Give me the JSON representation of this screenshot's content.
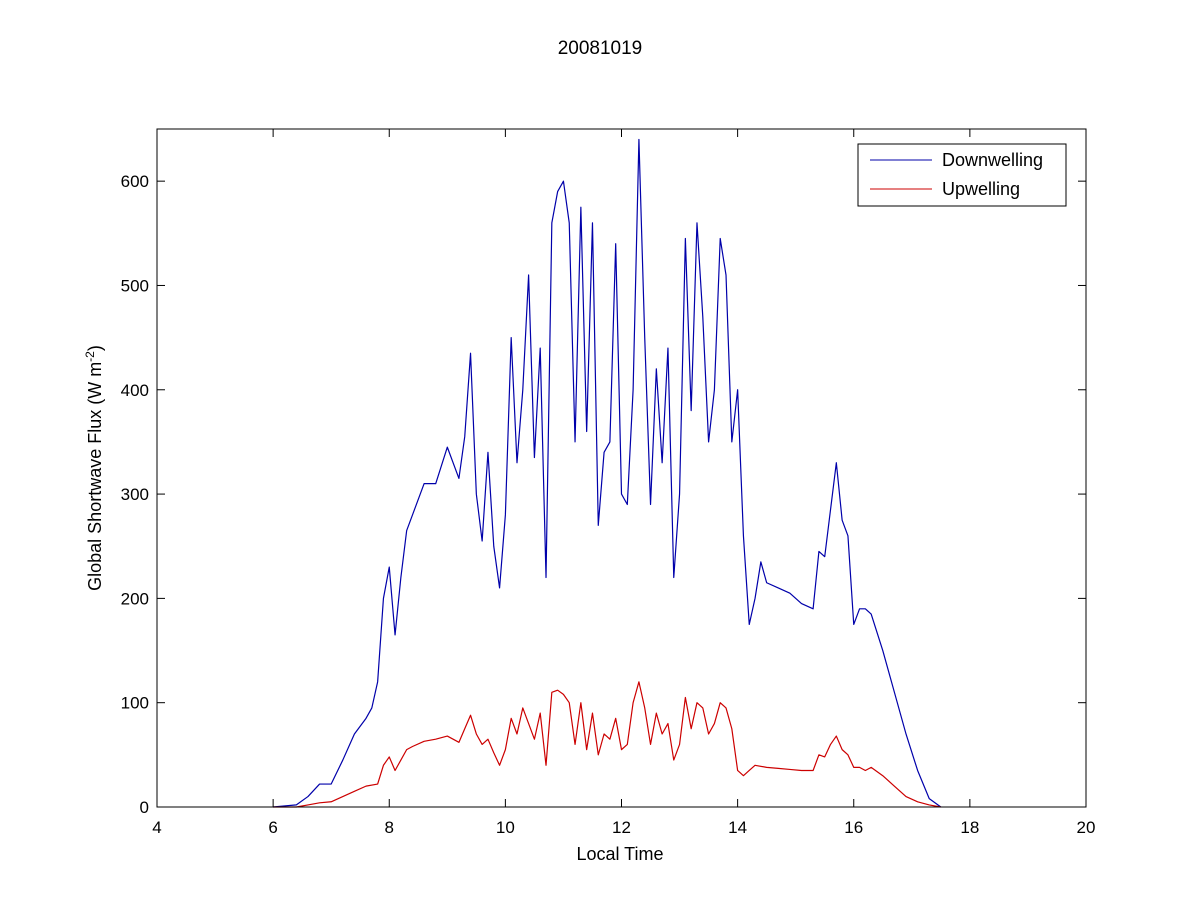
{
  "chart_data": {
    "type": "line",
    "title": "20081019",
    "xlabel": "Local Time",
    "ylabel": "Global Shortwave Flux (W m",
    "ylabel_superscript": "-2",
    "ylabel_suffix": ")",
    "xlim": [
      4,
      20
    ],
    "ylim": [
      0,
      650
    ],
    "xticks": [
      4,
      6,
      8,
      10,
      12,
      14,
      16,
      18,
      20
    ],
    "yticks": [
      0,
      100,
      200,
      300,
      400,
      500,
      600
    ],
    "grid": false,
    "legend_position": "top-right",
    "series": [
      {
        "name": "Downwelling",
        "color": "#0000aa",
        "x": [
          6.0,
          6.4,
          6.6,
          6.8,
          7.0,
          7.2,
          7.4,
          7.6,
          7.7,
          7.8,
          7.9,
          8.0,
          8.1,
          8.2,
          8.3,
          8.4,
          8.6,
          8.8,
          9.0,
          9.2,
          9.3,
          9.4,
          9.5,
          9.6,
          9.7,
          9.8,
          9.9,
          10.0,
          10.1,
          10.2,
          10.3,
          10.4,
          10.5,
          10.6,
          10.7,
          10.8,
          10.9,
          11.0,
          11.1,
          11.2,
          11.3,
          11.4,
          11.5,
          11.6,
          11.7,
          11.8,
          11.9,
          12.0,
          12.1,
          12.2,
          12.3,
          12.4,
          12.5,
          12.6,
          12.7,
          12.8,
          12.9,
          13.0,
          13.1,
          13.2,
          13.3,
          13.4,
          13.5,
          13.6,
          13.7,
          13.8,
          13.9,
          14.0,
          14.1,
          14.2,
          14.3,
          14.4,
          14.5,
          14.7,
          14.9,
          15.1,
          15.3,
          15.4,
          15.5,
          15.6,
          15.7,
          15.8,
          15.9,
          16.0,
          16.1,
          16.2,
          16.3,
          16.5,
          16.7,
          16.9,
          17.1,
          17.3,
          17.5
        ],
        "y": [
          0,
          2,
          10,
          22,
          22,
          45,
          70,
          85,
          95,
          120,
          200,
          230,
          165,
          220,
          265,
          280,
          310,
          310,
          345,
          315,
          355,
          435,
          300,
          255,
          340,
          250,
          210,
          280,
          450,
          330,
          400,
          510,
          335,
          440,
          220,
          560,
          590,
          600,
          560,
          350,
          575,
          360,
          560,
          270,
          340,
          350,
          540,
          300,
          290,
          400,
          640,
          450,
          290,
          420,
          330,
          440,
          220,
          300,
          545,
          380,
          560,
          470,
          350,
          400,
          545,
          510,
          350,
          400,
          260,
          175,
          200,
          235,
          215,
          210,
          205,
          195,
          190,
          245,
          240,
          285,
          330,
          275,
          260,
          175,
          190,
          190,
          185,
          150,
          110,
          70,
          35,
          8,
          0
        ]
      },
      {
        "name": "Upwelling",
        "color": "#cc0000",
        "x": [
          6.0,
          6.4,
          6.6,
          6.8,
          7.0,
          7.2,
          7.4,
          7.6,
          7.8,
          7.9,
          8.0,
          8.1,
          8.2,
          8.3,
          8.4,
          8.6,
          8.8,
          9.0,
          9.2,
          9.3,
          9.4,
          9.5,
          9.6,
          9.7,
          9.8,
          9.9,
          10.0,
          10.1,
          10.2,
          10.3,
          10.4,
          10.5,
          10.6,
          10.7,
          10.8,
          10.9,
          11.0,
          11.1,
          11.2,
          11.3,
          11.4,
          11.5,
          11.6,
          11.7,
          11.8,
          11.9,
          12.0,
          12.1,
          12.2,
          12.3,
          12.4,
          12.5,
          12.6,
          12.7,
          12.8,
          12.9,
          13.0,
          13.1,
          13.2,
          13.3,
          13.4,
          13.5,
          13.6,
          13.7,
          13.8,
          13.9,
          14.0,
          14.1,
          14.2,
          14.3,
          14.5,
          14.7,
          14.9,
          15.1,
          15.3,
          15.4,
          15.5,
          15.6,
          15.7,
          15.8,
          15.9,
          16.0,
          16.1,
          16.2,
          16.3,
          16.5,
          16.7,
          16.9,
          17.1,
          17.3,
          17.5
        ],
        "y": [
          0,
          0,
          2,
          4,
          5,
          10,
          15,
          20,
          22,
          40,
          48,
          35,
          45,
          55,
          58,
          63,
          65,
          68,
          62,
          75,
          88,
          70,
          60,
          65,
          52,
          40,
          55,
          85,
          70,
          95,
          80,
          65,
          90,
          40,
          110,
          112,
          108,
          100,
          60,
          100,
          55,
          90,
          50,
          70,
          65,
          85,
          55,
          60,
          100,
          120,
          95,
          60,
          90,
          70,
          80,
          45,
          60,
          105,
          75,
          100,
          95,
          70,
          80,
          100,
          95,
          75,
          35,
          30,
          35,
          40,
          38,
          37,
          36,
          35,
          35,
          50,
          48,
          60,
          68,
          55,
          50,
          38,
          38,
          35,
          38,
          30,
          20,
          10,
          5,
          2,
          0
        ]
      }
    ]
  }
}
